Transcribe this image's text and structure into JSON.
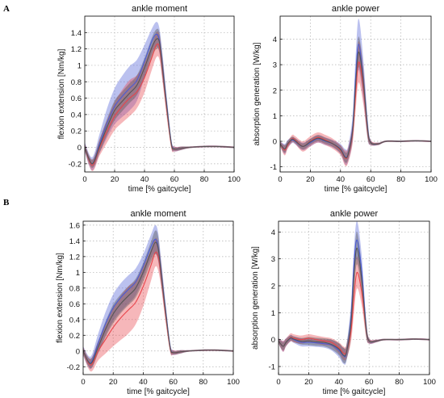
{
  "panel_labels": [
    "A",
    "B"
  ],
  "colors": {
    "blue": "#4b5bd6",
    "red": "#e8434a",
    "gray": "#555555"
  },
  "chart_data": [
    {
      "panel": "A",
      "position": "left",
      "type": "line",
      "title": "ankle moment",
      "xlabel": "time [% gaitcycle]",
      "ylabel": "flexion extension [Nm/kg]",
      "xlim": [
        0,
        100
      ],
      "ylim": [
        -0.3,
        1.6
      ],
      "xticks": [
        0,
        20,
        40,
        60,
        80,
        100
      ],
      "yticks": [
        -0.2,
        0,
        0.2,
        0.4,
        0.6,
        0.8,
        1,
        1.2,
        1.4
      ],
      "grid": true,
      "series": [
        {
          "color": "blue",
          "x": [
            0,
            5,
            10,
            15,
            20,
            25,
            30,
            35,
            40,
            45,
            48,
            50,
            52,
            55,
            58,
            60,
            65,
            70,
            80,
            90,
            100
          ],
          "y": [
            0,
            -0.2,
            0.05,
            0.3,
            0.5,
            0.62,
            0.72,
            0.82,
            1.05,
            1.3,
            1.38,
            1.3,
            1.0,
            0.5,
            0.05,
            -0.02,
            -0.01,
            0,
            0.01,
            0.01,
            0
          ],
          "band": [
            0.06,
            0.08,
            0.12,
            0.18,
            0.22,
            0.25,
            0.27,
            0.25,
            0.2,
            0.15,
            0.15,
            0.15,
            0.15,
            0.1,
            0.05,
            0.03,
            0.02,
            0.01,
            0.01,
            0.01,
            0.01
          ]
        },
        {
          "color": "red",
          "x": [
            0,
            5,
            10,
            15,
            20,
            25,
            30,
            35,
            40,
            45,
            48,
            50,
            52,
            55,
            58,
            60,
            65,
            70,
            80,
            90,
            100
          ],
          "y": [
            0,
            -0.22,
            0,
            0.2,
            0.38,
            0.5,
            0.6,
            0.68,
            0.85,
            1.1,
            1.25,
            1.22,
            0.95,
            0.45,
            0.03,
            -0.02,
            -0.01,
            0,
            0.01,
            0.01,
            0
          ],
          "band": [
            0.05,
            0.07,
            0.1,
            0.14,
            0.17,
            0.2,
            0.22,
            0.2,
            0.18,
            0.15,
            0.15,
            0.15,
            0.14,
            0.1,
            0.05,
            0.03,
            0.02,
            0.01,
            0.01,
            0.01,
            0.01
          ]
        },
        {
          "color": "gray",
          "x": [
            0,
            5,
            10,
            15,
            20,
            25,
            30,
            35,
            40,
            45,
            48,
            50,
            52,
            55,
            58,
            60,
            65,
            70,
            80,
            90,
            100
          ],
          "y": [
            0,
            -0.2,
            0.02,
            0.25,
            0.45,
            0.56,
            0.66,
            0.76,
            0.97,
            1.22,
            1.32,
            1.28,
            0.98,
            0.48,
            0.04,
            -0.02,
            -0.01,
            0,
            0.01,
            0.01,
            0
          ],
          "band": [
            0.04,
            0.05,
            0.08,
            0.1,
            0.12,
            0.12,
            0.12,
            0.12,
            0.12,
            0.12,
            0.12,
            0.12,
            0.12,
            0.08,
            0.04,
            0.02,
            0.02,
            0.01,
            0.01,
            0.01,
            0.01
          ]
        }
      ]
    },
    {
      "panel": "A",
      "position": "right",
      "type": "line",
      "title": "ankle power",
      "xlabel": "time [% gaitcycle]",
      "ylabel": "absorption generation [W/kg]",
      "xlim": [
        0,
        100
      ],
      "ylim": [
        -1.2,
        4.9
      ],
      "xticks": [
        0,
        20,
        40,
        60,
        80,
        100
      ],
      "yticks": [
        -1,
        0,
        1,
        2,
        3,
        4
      ],
      "grid": true,
      "series": [
        {
          "color": "blue",
          "x": [
            0,
            3,
            5,
            8,
            10,
            15,
            20,
            25,
            30,
            35,
            40,
            43,
            45,
            48,
            50,
            52,
            55,
            58,
            60,
            65,
            70,
            80,
            90,
            100
          ],
          "y": [
            -0.1,
            -0.3,
            -0.1,
            0.05,
            0,
            -0.2,
            -0.05,
            0.1,
            0,
            -0.1,
            -0.3,
            -0.6,
            -0.5,
            0.5,
            2.5,
            3.8,
            2.5,
            0.5,
            -0.05,
            -0.1,
            0,
            0,
            0.02,
            0
          ],
          "band": [
            0.1,
            0.2,
            0.15,
            0.12,
            0.12,
            0.15,
            0.15,
            0.15,
            0.15,
            0.15,
            0.2,
            0.3,
            0.3,
            0.5,
            0.8,
            1.0,
            0.8,
            0.4,
            0.1,
            0.05,
            0.03,
            0.03,
            0.03,
            0.03
          ]
        },
        {
          "color": "red",
          "x": [
            0,
            3,
            5,
            8,
            10,
            15,
            20,
            25,
            30,
            35,
            40,
            43,
            45,
            48,
            50,
            52,
            55,
            58,
            60,
            65,
            70,
            80,
            90,
            100
          ],
          "y": [
            -0.1,
            -0.35,
            -0.15,
            0.1,
            0.05,
            -0.2,
            0,
            0.15,
            0.05,
            -0.1,
            -0.35,
            -0.65,
            -0.55,
            0.3,
            1.8,
            3.1,
            2.2,
            0.4,
            -0.05,
            -0.1,
            0,
            0,
            0.02,
            0
          ],
          "band": [
            0.1,
            0.2,
            0.15,
            0.15,
            0.15,
            0.2,
            0.2,
            0.2,
            0.2,
            0.2,
            0.2,
            0.3,
            0.3,
            0.4,
            0.6,
            0.8,
            0.7,
            0.3,
            0.1,
            0.05,
            0.03,
            0.03,
            0.03,
            0.03
          ]
        },
        {
          "color": "gray",
          "x": [
            0,
            3,
            5,
            8,
            10,
            15,
            20,
            25,
            30,
            35,
            40,
            43,
            45,
            48,
            50,
            52,
            55,
            58,
            60,
            65,
            70,
            80,
            90,
            100
          ],
          "y": [
            -0.1,
            -0.3,
            -0.1,
            0.08,
            0.02,
            -0.2,
            -0.02,
            0.12,
            0.02,
            -0.1,
            -0.32,
            -0.62,
            -0.52,
            0.4,
            2.2,
            3.5,
            2.4,
            0.45,
            -0.05,
            -0.1,
            0,
            0,
            0.02,
            0
          ],
          "band": [
            0.08,
            0.15,
            0.12,
            0.1,
            0.1,
            0.12,
            0.12,
            0.12,
            0.12,
            0.12,
            0.15,
            0.2,
            0.2,
            0.3,
            0.5,
            0.6,
            0.5,
            0.3,
            0.08,
            0.04,
            0.03,
            0.03,
            0.03,
            0.03
          ]
        }
      ]
    },
    {
      "panel": "B",
      "position": "left",
      "type": "line",
      "title": "ankle moment",
      "xlabel": "time [% gaitcycle]",
      "ylabel": "flexion extension [Nm/kg]",
      "xlim": [
        0,
        100
      ],
      "ylim": [
        -0.3,
        1.65
      ],
      "xticks": [
        0,
        20,
        40,
        60,
        80,
        100
      ],
      "yticks": [
        -0.2,
        0,
        0.2,
        0.4,
        0.6,
        0.8,
        1,
        1.2,
        1.4,
        1.6
      ],
      "grid": true,
      "series": [
        {
          "color": "blue",
          "x": [
            0,
            5,
            10,
            15,
            20,
            25,
            30,
            35,
            40,
            45,
            48,
            50,
            52,
            55,
            58,
            60,
            65,
            70,
            80,
            90,
            100
          ],
          "y": [
            0,
            -0.15,
            0.1,
            0.35,
            0.55,
            0.68,
            0.78,
            0.88,
            1.08,
            1.32,
            1.42,
            1.32,
            1.0,
            0.5,
            0.05,
            -0.02,
            -0.01,
            0,
            0.01,
            0.01,
            0
          ],
          "band": [
            0.06,
            0.08,
            0.12,
            0.15,
            0.17,
            0.18,
            0.18,
            0.17,
            0.15,
            0.15,
            0.18,
            0.18,
            0.15,
            0.1,
            0.05,
            0.03,
            0.02,
            0.01,
            0.01,
            0.01,
            0.01
          ]
        },
        {
          "color": "red",
          "x": [
            0,
            5,
            10,
            15,
            20,
            25,
            30,
            35,
            40,
            45,
            48,
            50,
            52,
            55,
            58,
            60,
            65,
            70,
            80,
            90,
            100
          ],
          "y": [
            0,
            -0.18,
            0,
            0.15,
            0.3,
            0.42,
            0.52,
            0.62,
            0.82,
            1.08,
            1.25,
            1.2,
            0.95,
            0.45,
            0.03,
            -0.02,
            -0.01,
            0,
            0.01,
            0.01,
            0
          ],
          "band": [
            0.05,
            0.08,
            0.12,
            0.18,
            0.24,
            0.28,
            0.3,
            0.28,
            0.25,
            0.2,
            0.18,
            0.18,
            0.15,
            0.1,
            0.05,
            0.03,
            0.02,
            0.01,
            0.01,
            0.01,
            0.01
          ]
        },
        {
          "color": "gray",
          "x": [
            0,
            5,
            10,
            15,
            20,
            25,
            30,
            35,
            40,
            45,
            48,
            50,
            52,
            55,
            58,
            60,
            65,
            70,
            80,
            90,
            100
          ],
          "y": [
            0,
            -0.16,
            0.05,
            0.28,
            0.47,
            0.6,
            0.7,
            0.8,
            1.0,
            1.25,
            1.38,
            1.3,
            0.98,
            0.48,
            0.04,
            -0.02,
            -0.01,
            0,
            0.01,
            0.01,
            0
          ],
          "band": [
            0.04,
            0.06,
            0.08,
            0.1,
            0.12,
            0.12,
            0.12,
            0.12,
            0.12,
            0.13,
            0.15,
            0.15,
            0.12,
            0.08,
            0.04,
            0.02,
            0.02,
            0.01,
            0.01,
            0.01,
            0.01
          ]
        }
      ]
    },
    {
      "panel": "B",
      "position": "right",
      "type": "line",
      "title": "ankle power",
      "xlabel": "time [% gaitcycle]",
      "ylabel": "absorption generation [W/kg]",
      "xlim": [
        0,
        100
      ],
      "ylim": [
        -1.3,
        4.4
      ],
      "xticks": [
        0,
        20,
        40,
        60,
        80,
        100
      ],
      "yticks": [
        -1,
        0,
        1,
        2,
        3,
        4
      ],
      "grid": true,
      "series": [
        {
          "color": "blue",
          "x": [
            0,
            3,
            5,
            8,
            10,
            15,
            20,
            25,
            30,
            35,
            40,
            43,
            45,
            48,
            50,
            52,
            55,
            58,
            60,
            65,
            70,
            80,
            90,
            100
          ],
          "y": [
            -0.05,
            -0.25,
            -0.1,
            0.05,
            0,
            -0.1,
            -0.1,
            -0.12,
            -0.15,
            -0.2,
            -0.4,
            -0.6,
            -0.5,
            0.8,
            2.8,
            3.7,
            2.6,
            0.5,
            -0.05,
            -0.05,
            0,
            0,
            0.02,
            0
          ],
          "band": [
            0.1,
            0.2,
            0.15,
            0.12,
            0.12,
            0.15,
            0.15,
            0.15,
            0.15,
            0.2,
            0.25,
            0.3,
            0.3,
            0.5,
            0.6,
            0.7,
            0.6,
            0.3,
            0.1,
            0.05,
            0.03,
            0.03,
            0.03,
            0.03
          ]
        },
        {
          "color": "red",
          "x": [
            0,
            3,
            5,
            8,
            10,
            15,
            20,
            25,
            30,
            35,
            40,
            43,
            45,
            48,
            50,
            52,
            55,
            58,
            60,
            65,
            70,
            80,
            90,
            100
          ],
          "y": [
            -0.05,
            -0.25,
            -0.1,
            0.08,
            0.05,
            0,
            0.05,
            0,
            -0.05,
            -0.1,
            -0.3,
            -0.5,
            -0.45,
            0.3,
            1.6,
            2.5,
            1.8,
            0.4,
            -0.05,
            -0.05,
            0,
            0,
            0.02,
            0
          ],
          "band": [
            0.1,
            0.2,
            0.15,
            0.15,
            0.15,
            0.15,
            0.15,
            0.15,
            0.15,
            0.15,
            0.2,
            0.25,
            0.25,
            0.4,
            0.6,
            0.6,
            0.5,
            0.3,
            0.1,
            0.05,
            0.03,
            0.03,
            0.03,
            0.03
          ]
        },
        {
          "color": "gray",
          "x": [
            0,
            3,
            5,
            8,
            10,
            15,
            20,
            25,
            30,
            35,
            40,
            43,
            45,
            48,
            50,
            52,
            55,
            58,
            60,
            65,
            70,
            80,
            90,
            100
          ],
          "y": [
            -0.05,
            -0.25,
            -0.1,
            0.06,
            0.02,
            -0.06,
            -0.05,
            -0.08,
            -0.1,
            -0.18,
            -0.35,
            -0.58,
            -0.48,
            0.6,
            2.4,
            3.4,
            2.3,
            0.45,
            -0.05,
            -0.05,
            0,
            0,
            0.02,
            0
          ],
          "band": [
            0.1,
            0.15,
            0.12,
            0.1,
            0.1,
            0.12,
            0.15,
            0.15,
            0.15,
            0.18,
            0.22,
            0.28,
            0.28,
            0.5,
            0.6,
            0.6,
            0.5,
            0.3,
            0.08,
            0.04,
            0.03,
            0.03,
            0.03,
            0.03
          ]
        }
      ]
    }
  ]
}
